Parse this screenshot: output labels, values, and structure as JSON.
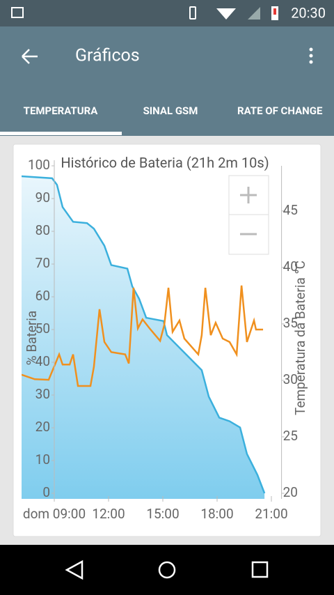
{
  "status_bar": {
    "time": "20:30"
  },
  "toolbar": {
    "title": "Gráficos"
  },
  "tabs": [
    "TEMPERATURA",
    "SINAL GSM",
    "RATE OF CHANGE"
  ],
  "chart_data": {
    "type": "line",
    "title": "Histórico de Bateria (21h 2m 10s)",
    "ylabel": "% Bateria",
    "y2label": "Temperatura da Bateria °C",
    "xlim": [
      7.2,
      21.6
    ],
    "xticks": [
      {
        "value": 9,
        "label": "dom 09:00"
      },
      {
        "value": 12,
        "label": "12:00"
      },
      {
        "value": 15,
        "label": "15:00"
      },
      {
        "value": 18,
        "label": "18:00"
      },
      {
        "value": 21,
        "label": "21:00"
      }
    ],
    "ylim": [
      0,
      100
    ],
    "yticks": [
      0,
      10,
      20,
      30,
      40,
      50,
      60,
      70,
      80,
      90,
      100
    ],
    "y2lim": [
      20,
      49
    ],
    "y2ticks": [
      20,
      25,
      30,
      35,
      40,
      45
    ],
    "series": [
      {
        "color": "#3bb0dd",
        "fill": true,
        "axis": "y",
        "x": [
          7.19,
          8.88,
          9.15,
          9.46,
          10.04,
          10.81,
          11.19,
          11.77,
          12.15,
          13.04,
          13.31,
          13.69,
          14.08,
          15.04,
          15.23,
          17.15,
          17.54,
          18.12,
          18.69,
          19.27,
          19.65,
          20.23,
          20.62
        ],
        "values": [
          96.8,
          96.2,
          94.2,
          87.4,
          82.9,
          82.5,
          80.8,
          75.6,
          69.7,
          68.6,
          63.2,
          59.4,
          53.6,
          52.6,
          48.3,
          37.6,
          29.5,
          23.1,
          22.0,
          20.1,
          12.0,
          5.6,
          0
        ]
      },
      {
        "color": "#f0901e",
        "fill": false,
        "axis": "y2",
        "x": [
          7.19,
          7.92,
          8.69,
          9.27,
          9.46,
          9.85,
          10.04,
          10.31,
          11.0,
          11.19,
          11.5,
          11.77,
          12.15,
          12.92,
          13.12,
          13.38,
          13.62,
          13.88,
          14.27,
          14.85,
          15.08,
          15.31,
          15.54,
          15.92,
          16.19,
          16.96,
          17.15,
          17.35,
          17.65,
          17.92,
          18.31,
          18.69,
          19.08,
          19.35,
          19.65,
          20.04,
          20.15,
          20.54
        ],
        "values": [
          30.5,
          30.1,
          30.05,
          32.3,
          31.4,
          31.4,
          32.3,
          29.5,
          29.5,
          31.2,
          36.3,
          33.4,
          32.5,
          32.3,
          31.5,
          38.2,
          34.6,
          35.4,
          34.6,
          33.5,
          34.9,
          38.2,
          34.3,
          35.3,
          33.7,
          32.3,
          34.0,
          38.2,
          34.0,
          35.1,
          33.7,
          33.4,
          32.3,
          38.4,
          33.4,
          35.3,
          34.5,
          34.5
        ]
      }
    ]
  }
}
